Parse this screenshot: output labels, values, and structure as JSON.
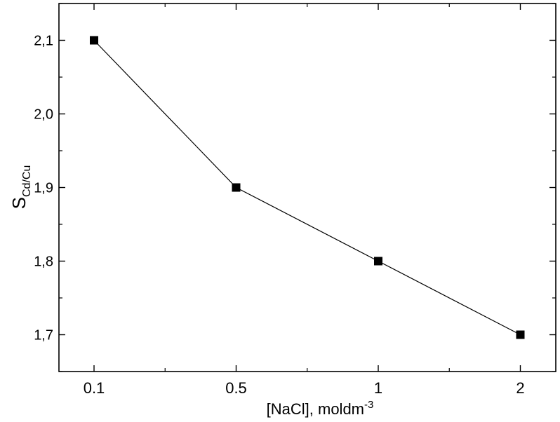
{
  "chart_data": {
    "type": "line",
    "x_axis_kind": "categorical",
    "categories": [
      "0.1",
      "0.5",
      "1",
      "2"
    ],
    "series": [
      {
        "values": [
          2.1,
          1.9,
          1.8,
          1.7
        ],
        "marker": "square",
        "color": "#000000"
      }
    ],
    "ylim": [
      1.65,
      2.15
    ],
    "y_ticks": [
      1.7,
      1.8,
      1.9,
      2.0,
      2.1
    ],
    "y_tick_labels": [
      "1,7",
      "1,8",
      "1,9",
      "2,0",
      "2,1"
    ],
    "xlabel": {
      "main": "[NaCl], moldm",
      "superscript": "-3"
    },
    "ylabel": {
      "main": "S",
      "subscript": "Cd/Cu"
    },
    "grid": false,
    "legend": "none"
  }
}
